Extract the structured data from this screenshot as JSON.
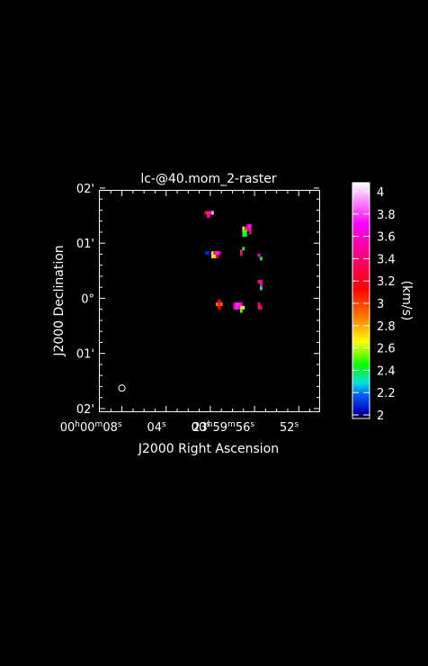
{
  "chart_data": {
    "type": "heatmap",
    "title": "lc-@40.mom_2-raster",
    "xlabel": "J2000 Right Ascension",
    "ylabel": "J2000 Declination",
    "colorbar_label": "(km/s)",
    "background": "#000000",
    "foreground": "#ffffff",
    "colormap": [
      {
        "value": 2.0,
        "color": "#000000"
      },
      {
        "value": 2.05,
        "color": "#0000b0"
      },
      {
        "value": 2.2,
        "color": "#0060ff"
      },
      {
        "value": 2.3,
        "color": "#00e0e0"
      },
      {
        "value": 2.45,
        "color": "#00ff00"
      },
      {
        "value": 2.65,
        "color": "#ffff00"
      },
      {
        "value": 2.85,
        "color": "#ff8000"
      },
      {
        "value": 3.1,
        "color": "#ff0000"
      },
      {
        "value": 3.4,
        "color": "#ff0088"
      },
      {
        "value": 3.65,
        "color": "#ff00ff"
      },
      {
        "value": 3.85,
        "color": "#ff90ff"
      },
      {
        "value": 4.0,
        "color": "#ffffff"
      }
    ],
    "colorbar_range": [
      2,
      4
    ],
    "colorbar_ticks": [
      "2",
      "2.2",
      "2.4",
      "2.6",
      "2.8",
      "3",
      "3.2",
      "3.4",
      "3.6",
      "3.8",
      "4"
    ],
    "x_ticks": [
      {
        "sec": 8,
        "label_h": "00",
        "label_m": "00",
        "label_s": "08"
      },
      {
        "sec": 4,
        "label_s": "04"
      },
      {
        "sec": 0,
        "label_s": "00"
      },
      {
        "sec": -4,
        "label_h": "23",
        "label_m": "59",
        "label_s": "56"
      },
      {
        "sec": -8,
        "label_s": "52"
      }
    ],
    "y_ticks": [
      {
        "arcmin": 2,
        "label": "02'"
      },
      {
        "arcmin": 1,
        "label": "01'"
      },
      {
        "arcmin": 0,
        "label": "0°"
      },
      {
        "arcmin": -1,
        "label": "01'"
      },
      {
        "arcmin": -2,
        "label": "02'"
      }
    ],
    "x_range_sec": [
      10.0,
      -9.85
    ],
    "y_range_arcmin": [
      -2.05,
      1.95
    ],
    "beam": {
      "ra_sec": 8.0,
      "dec_arcmin": -1.63
    },
    "pixels": [
      {
        "ra": 0.4,
        "dec": 1.55,
        "v": 3.2
      },
      {
        "ra": 0.2,
        "dec": 1.55,
        "v": 3.0
      },
      {
        "ra": 0.0,
        "dec": 1.55,
        "v": 3.6
      },
      {
        "ra": -0.2,
        "dec": 1.55,
        "v": 3.9
      },
      {
        "ra": 0.2,
        "dec": 1.49,
        "v": 3.5
      },
      {
        "ra": -3.4,
        "dec": 1.31,
        "v": 3.6
      },
      {
        "ra": -3.6,
        "dec": 1.31,
        "v": 3.7
      },
      {
        "ra": -3.6,
        "dec": 1.25,
        "v": 3.5
      },
      {
        "ra": -3.4,
        "dec": 1.25,
        "v": 3.4
      },
      {
        "ra": -3.6,
        "dec": 1.19,
        "v": 3.3
      },
      {
        "ra": -3.0,
        "dec": 1.27,
        "v": 2.6
      },
      {
        "ra": -3.2,
        "dec": 1.27,
        "v": 3.4
      },
      {
        "ra": -3.0,
        "dec": 1.21,
        "v": 2.5
      },
      {
        "ra": -3.2,
        "dec": 1.21,
        "v": 2.5
      },
      {
        "ra": -3.0,
        "dec": 1.15,
        "v": 2.4
      },
      {
        "ra": -3.2,
        "dec": 1.15,
        "v": 2.4
      },
      {
        "ra": -3.0,
        "dec": 0.9,
        "v": 2.4
      },
      {
        "ra": -2.8,
        "dec": 0.85,
        "v": 3.4
      },
      {
        "ra": -2.8,
        "dec": 0.8,
        "v": 3.3
      },
      {
        "ra": 0.4,
        "dec": 0.82,
        "v": 2.1
      },
      {
        "ra": 0.2,
        "dec": 0.82,
        "v": 2.1
      },
      {
        "ra": -0.2,
        "dec": 0.82,
        "v": 2.7
      },
      {
        "ra": -0.4,
        "dec": 0.82,
        "v": 3.4
      },
      {
        "ra": -0.6,
        "dec": 0.82,
        "v": 3.7
      },
      {
        "ra": -0.8,
        "dec": 0.82,
        "v": 3.6
      },
      {
        "ra": -0.2,
        "dec": 0.76,
        "v": 2.6
      },
      {
        "ra": -0.4,
        "dec": 0.76,
        "v": 2.7
      },
      {
        "ra": -0.6,
        "dec": 0.76,
        "v": 3.3
      },
      {
        "ra": -4.4,
        "dec": 0.78,
        "v": 3.5
      },
      {
        "ra": -4.6,
        "dec": 0.72,
        "v": 2.4
      },
      {
        "ra": -4.4,
        "dec": 0.3,
        "v": 3.4
      },
      {
        "ra": -4.6,
        "dec": 0.3,
        "v": 3.4
      },
      {
        "ra": -4.6,
        "dec": 0.24,
        "v": 3.5
      },
      {
        "ra": -4.6,
        "dec": 0.18,
        "v": 2.3
      },
      {
        "ra": -0.8,
        "dec": -0.05,
        "v": 3.1
      },
      {
        "ra": -0.8,
        "dec": -0.11,
        "v": 3.3
      },
      {
        "ra": -0.8,
        "dec": -0.17,
        "v": 3.1
      },
      {
        "ra": -1.0,
        "dec": -0.11,
        "v": 2.9
      },
      {
        "ra": -0.6,
        "dec": -0.11,
        "v": 2.9
      },
      {
        "ra": -2.2,
        "dec": -0.11,
        "v": 3.4
      },
      {
        "ra": -2.4,
        "dec": -0.11,
        "v": 3.7
      },
      {
        "ra": -2.6,
        "dec": -0.11,
        "v": 3.7
      },
      {
        "ra": -2.8,
        "dec": -0.11,
        "v": 3.5
      },
      {
        "ra": -2.2,
        "dec": -0.17,
        "v": 3.6
      },
      {
        "ra": -2.4,
        "dec": -0.17,
        "v": 3.7
      },
      {
        "ra": -2.6,
        "dec": -0.17,
        "v": 3.6
      },
      {
        "ra": -2.8,
        "dec": -0.17,
        "v": 2.7
      },
      {
        "ra": -3.0,
        "dec": -0.17,
        "v": 2.6
      },
      {
        "ra": -2.8,
        "dec": -0.23,
        "v": 2.5
      },
      {
        "ra": -4.4,
        "dec": -0.11,
        "v": 3.4
      },
      {
        "ra": -4.4,
        "dec": -0.17,
        "v": 3.4
      },
      {
        "ra": -4.6,
        "dec": -0.17,
        "v": 3.2
      }
    ]
  }
}
